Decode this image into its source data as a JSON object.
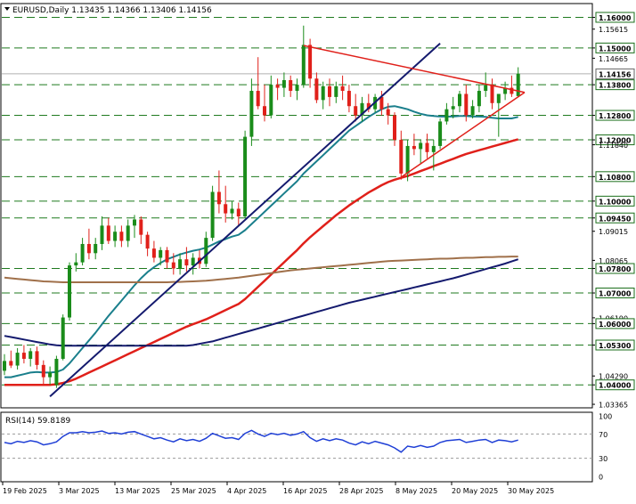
{
  "header": {
    "symbol": "EURUSD,Daily",
    "ohlc": "1.13435 1.14366 1.13406 1.14156"
  },
  "rsi_header": "RSI(14) 59.8189",
  "chart_data": {
    "type": "candlestick",
    "price_range": [
      1.0325,
      1.1645
    ],
    "price_ticks": [
      {
        "value": 1.16,
        "label": "1.16000",
        "boxed": true
      },
      {
        "value": 1.15615,
        "label": "1.15615",
        "boxed": false
      },
      {
        "value": 1.15,
        "label": "1.15000",
        "boxed": true
      },
      {
        "value": 1.14665,
        "label": "1.14665",
        "boxed": false
      },
      {
        "value": 1.138,
        "label": "1.13800",
        "boxed": true
      },
      {
        "value": 1.128,
        "label": "1.12800",
        "boxed": true
      },
      {
        "value": 1.12,
        "label": "1.12000",
        "boxed": true
      },
      {
        "value": 1.1184,
        "label": "1.11840",
        "boxed": false
      },
      {
        "value": 1.108,
        "label": "1.10800",
        "boxed": true
      },
      {
        "value": 1.1,
        "label": "1.10000",
        "boxed": true
      },
      {
        "value": 1.0945,
        "label": "1.09450",
        "boxed": true
      },
      {
        "value": 1.09015,
        "label": "1.09015",
        "boxed": false
      },
      {
        "value": 1.08065,
        "label": "1.08065",
        "boxed": false
      },
      {
        "value": 1.078,
        "label": "1.07800",
        "boxed": true
      },
      {
        "value": 1.07,
        "label": "1.07000",
        "boxed": true
      },
      {
        "value": 1.0619,
        "label": "1.06190",
        "boxed": false
      },
      {
        "value": 1.06,
        "label": "1.06000",
        "boxed": true
      },
      {
        "value": 1.053,
        "label": "1.05300",
        "boxed": true
      },
      {
        "value": 1.0429,
        "label": "1.04290",
        "boxed": false
      },
      {
        "value": 1.04,
        "label": "1.04000",
        "boxed": true
      },
      {
        "value": 1.03365,
        "label": "1.03365",
        "boxed": false
      }
    ],
    "level_lines": [
      1.16,
      1.15,
      1.138,
      1.128,
      1.12,
      1.108,
      1.1,
      1.0945,
      1.078,
      1.07,
      1.06,
      1.053,
      1.04
    ],
    "current_price": {
      "value": 1.14156,
      "label": "1.14156"
    },
    "x_labels": [
      "19 Feb 2025",
      "3 Mar 2025",
      "13 Mar 2025",
      "25 Mar 2025",
      "4 Apr 2025",
      "16 Apr 2025",
      "28 Apr 2025",
      "8 May 2025",
      "20 May 2025",
      "30 May 2025"
    ],
    "candles": [
      [
        1.0446,
        1.05,
        1.0432,
        1.0478
      ],
      [
        1.0478,
        1.0512,
        1.0455,
        1.0463
      ],
      [
        1.0463,
        1.052,
        1.045,
        1.0505
      ],
      [
        1.0505,
        1.053,
        1.047,
        1.0485
      ],
      [
        1.0485,
        1.052,
        1.046,
        1.051
      ],
      [
        1.051,
        1.0525,
        1.045,
        1.0465
      ],
      [
        1.0465,
        1.048,
        1.04,
        1.0425
      ],
      [
        1.0425,
        1.046,
        1.04,
        1.044
      ],
      [
        1.04,
        1.0495,
        1.039,
        1.0485
      ],
      [
        1.0485,
        1.063,
        1.048,
        1.062
      ],
      [
        1.062,
        1.08,
        1.061,
        1.079
      ],
      [
        1.079,
        1.083,
        1.077,
        1.08
      ],
      [
        1.08,
        1.088,
        1.079,
        1.086
      ],
      [
        1.086,
        1.091,
        1.081,
        1.083
      ],
      [
        1.083,
        1.088,
        1.081,
        1.086
      ],
      [
        1.086,
        1.095,
        1.084,
        1.092
      ],
      [
        1.092,
        1.0945,
        1.086,
        1.087
      ],
      [
        1.087,
        1.092,
        1.085,
        1.09
      ],
      [
        1.09,
        1.092,
        1.085,
        1.087
      ],
      [
        1.087,
        1.094,
        1.085,
        1.092
      ],
      [
        1.092,
        1.0955,
        1.088,
        1.094
      ],
      [
        1.094,
        1.095,
        1.086,
        1.089
      ],
      [
        1.089,
        1.09,
        1.082,
        1.0845
      ],
      [
        1.0845,
        1.087,
        1.08,
        1.0815
      ],
      [
        1.0815,
        1.085,
        1.079,
        1.084
      ],
      [
        1.084,
        1.085,
        1.078,
        1.08
      ],
      [
        1.08,
        1.083,
        1.076,
        1.078
      ],
      [
        1.078,
        1.083,
        1.076,
        1.081
      ],
      [
        1.081,
        1.085,
        1.077,
        1.079
      ],
      [
        1.079,
        1.083,
        1.076,
        1.0815
      ],
      [
        1.0815,
        1.084,
        1.078,
        1.0795
      ],
      [
        1.0795,
        1.09,
        1.0785,
        1.088
      ],
      [
        1.088,
        1.105,
        1.087,
        1.103
      ],
      [
        1.103,
        1.11,
        1.096,
        1.099
      ],
      [
        1.099,
        1.105,
        1.093,
        1.096
      ],
      [
        1.096,
        1.1,
        1.094,
        1.0975
      ],
      [
        1.0975,
        1.0995,
        1.092,
        1.095
      ],
      [
        1.095,
        1.123,
        1.0945,
        1.121
      ],
      [
        1.121,
        1.14,
        1.118,
        1.136
      ],
      [
        1.136,
        1.147,
        1.13,
        1.131
      ],
      [
        1.131,
        1.138,
        1.126,
        1.128
      ],
      [
        1.128,
        1.141,
        1.127,
        1.138
      ],
      [
        1.138,
        1.14,
        1.133,
        1.137
      ],
      [
        1.137,
        1.142,
        1.134,
        1.1395
      ],
      [
        1.1395,
        1.141,
        1.134,
        1.136
      ],
      [
        1.136,
        1.14,
        1.133,
        1.138
      ],
      [
        1.138,
        1.1573,
        1.137,
        1.151
      ],
      [
        1.151,
        1.153,
        1.137,
        1.14
      ],
      [
        1.14,
        1.142,
        1.132,
        1.133
      ],
      [
        1.133,
        1.139,
        1.13,
        1.1375
      ],
      [
        1.1375,
        1.14,
        1.131,
        1.134
      ],
      [
        1.134,
        1.139,
        1.132,
        1.1375
      ],
      [
        1.1375,
        1.141,
        1.133,
        1.136
      ],
      [
        1.136,
        1.138,
        1.129,
        1.131
      ],
      [
        1.131,
        1.135,
        1.126,
        1.128
      ],
      [
        1.128,
        1.134,
        1.126,
        1.132
      ],
      [
        1.132,
        1.135,
        1.129,
        1.13
      ],
      [
        1.13,
        1.135,
        1.129,
        1.134
      ],
      [
        1.134,
        1.136,
        1.128,
        1.13
      ],
      [
        1.13,
        1.132,
        1.125,
        1.128
      ],
      [
        1.128,
        1.129,
        1.118,
        1.12
      ],
      [
        1.12,
        1.123,
        1.107,
        1.109
      ],
      [
        1.109,
        1.12,
        1.1065,
        1.118
      ],
      [
        1.118,
        1.122,
        1.115,
        1.117
      ],
      [
        1.117,
        1.12,
        1.112,
        1.119
      ],
      [
        1.119,
        1.122,
        1.114,
        1.116
      ],
      [
        1.116,
        1.12,
        1.11,
        1.118
      ],
      [
        1.118,
        1.127,
        1.117,
        1.126
      ],
      [
        1.126,
        1.132,
        1.125,
        1.13
      ],
      [
        1.13,
        1.134,
        1.127,
        1.131
      ],
      [
        1.131,
        1.136,
        1.129,
        1.135
      ],
      [
        1.135,
        1.138,
        1.126,
        1.128
      ],
      [
        1.128,
        1.133,
        1.127,
        1.131
      ],
      [
        1.131,
        1.138,
        1.129,
        1.136
      ],
      [
        1.136,
        1.142,
        1.134,
        1.138
      ],
      [
        1.138,
        1.14,
        1.13,
        1.132
      ],
      [
        1.132,
        1.135,
        1.121,
        1.135
      ],
      [
        1.135,
        1.139,
        1.133,
        1.137
      ],
      [
        1.137,
        1.141,
        1.134,
        1.135
      ],
      [
        1.1343,
        1.1437,
        1.1341,
        1.1416
      ]
    ],
    "rsi": {
      "range": [
        0,
        100
      ],
      "ticks": [
        100,
        70,
        30,
        0
      ],
      "levels": [
        70,
        30
      ],
      "values": [
        56,
        54,
        58,
        56,
        59,
        57,
        52,
        54,
        57,
        66,
        72,
        72,
        74,
        72,
        73,
        75,
        71,
        72,
        70,
        73,
        74,
        70,
        66,
        62,
        64,
        60,
        57,
        62,
        59,
        61,
        58,
        63,
        71,
        67,
        63,
        64,
        61,
        71,
        76,
        70,
        66,
        71,
        69,
        71,
        68,
        70,
        74,
        64,
        58,
        62,
        59,
        62,
        60,
        55,
        52,
        57,
        54,
        58,
        55,
        52,
        47,
        40,
        50,
        48,
        51,
        48,
        50,
        56,
        59,
        60,
        61,
        56,
        58,
        60,
        61,
        56,
        60,
        59,
        57,
        60
      ]
    },
    "overlays": [
      {
        "kind": "ma",
        "color": "#1a7f8c",
        "width": 2,
        "start": 0,
        "values": [
          1.0425,
          1.0425,
          1.043,
          1.0435,
          1.044,
          1.0442,
          1.044,
          1.044,
          1.0442,
          1.045,
          1.047,
          1.0495,
          1.052,
          1.0545,
          1.057,
          1.0598,
          1.0625,
          1.065,
          1.0675,
          1.07,
          1.0725,
          1.0748,
          1.0768,
          1.0784,
          1.0798,
          1.081,
          1.0818,
          1.0826,
          1.0832,
          1.0838,
          1.0842,
          1.0848,
          1.0858,
          1.0868,
          1.0876,
          1.0884,
          1.089,
          1.0905,
          1.0925,
          1.0945,
          1.0965,
          1.0985,
          1.1005,
          1.1025,
          1.1045,
          1.1065,
          1.109,
          1.111,
          1.113,
          1.115,
          1.117,
          1.119,
          1.121,
          1.123,
          1.1245,
          1.126,
          1.1275,
          1.1288,
          1.13,
          1.1308,
          1.131,
          1.1305,
          1.13,
          1.1292,
          1.1285,
          1.128,
          1.1278,
          1.1276,
          1.1276,
          1.1276,
          1.1278,
          1.1278,
          1.1276,
          1.1276,
          1.1275,
          1.1272,
          1.127,
          1.127,
          1.127,
          1.1275
        ]
      },
      {
        "kind": "ma",
        "color": "#e0201a",
        "width": 2.5,
        "start": 0,
        "values": [
          1.04,
          1.04,
          1.04,
          1.04,
          1.04,
          1.04,
          1.04,
          1.04,
          1.0402,
          1.0406,
          1.0412,
          1.042,
          1.043,
          1.044,
          1.045,
          1.046,
          1.047,
          1.048,
          1.049,
          1.05,
          1.051,
          1.052,
          1.053,
          1.054,
          1.055,
          1.056,
          1.057,
          1.058,
          1.059,
          1.0598,
          1.0606,
          1.0614,
          1.0624,
          1.0634,
          1.0644,
          1.0654,
          1.0664,
          1.068,
          1.07,
          1.072,
          1.074,
          1.076,
          1.078,
          1.08,
          1.082,
          1.084,
          1.0862,
          1.0882,
          1.09,
          1.0918,
          1.0936,
          1.0954,
          1.097,
          1.0986,
          1.1,
          1.1014,
          1.1028,
          1.104,
          1.1052,
          1.1062,
          1.107,
          1.1076,
          1.1082,
          1.109,
          1.1098,
          1.1106,
          1.1114,
          1.1122,
          1.113,
          1.1138,
          1.1146,
          1.1154,
          1.116,
          1.1166,
          1.1172,
          1.1178,
          1.1184,
          1.119,
          1.1196,
          1.1202
        ]
      },
      {
        "kind": "ma",
        "color": "#141a6e",
        "width": 2,
        "start": 0,
        "values": [
          1.056,
          1.0556,
          1.0552,
          1.0548,
          1.0544,
          1.054,
          1.0536,
          1.0532,
          1.0529,
          1.0528,
          1.0528,
          1.0528,
          1.0528,
          1.0528,
          1.0528,
          1.0528,
          1.0528,
          1.0528,
          1.0528,
          1.0528,
          1.0528,
          1.0528,
          1.0528,
          1.0528,
          1.0528,
          1.0528,
          1.0528,
          1.0528,
          1.0528,
          1.053,
          1.0534,
          1.0538,
          1.0542,
          1.0548,
          1.0554,
          1.056,
          1.0566,
          1.0572,
          1.0578,
          1.0584,
          1.059,
          1.0596,
          1.0602,
          1.0608,
          1.0614,
          1.062,
          1.0626,
          1.0632,
          1.0638,
          1.0644,
          1.065,
          1.0656,
          1.0662,
          1.0668,
          1.0673,
          1.0678,
          1.0683,
          1.0688,
          1.0693,
          1.0698,
          1.0703,
          1.0708,
          1.0713,
          1.0718,
          1.0723,
          1.0728,
          1.0733,
          1.0738,
          1.0743,
          1.0748,
          1.0754,
          1.076,
          1.0766,
          1.0772,
          1.0778,
          1.0784,
          1.079,
          1.0796,
          1.0803,
          1.081
        ]
      },
      {
        "kind": "ma",
        "color": "#a0704a",
        "width": 2,
        "start": 0,
        "values": [
          1.075,
          1.0748,
          1.0746,
          1.0744,
          1.0742,
          1.074,
          1.0738,
          1.0737,
          1.0736,
          1.0735,
          1.0735,
          1.0735,
          1.0735,
          1.0735,
          1.0735,
          1.0735,
          1.0735,
          1.0735,
          1.0735,
          1.0735,
          1.0735,
          1.0735,
          1.0735,
          1.0735,
          1.0735,
          1.0735,
          1.0736,
          1.0736,
          1.0737,
          1.0738,
          1.0739,
          1.074,
          1.0742,
          1.0744,
          1.0746,
          1.0748,
          1.075,
          1.0753,
          1.0756,
          1.0759,
          1.0762,
          1.0765,
          1.0768,
          1.0771,
          1.0774,
          1.0776,
          1.0778,
          1.078,
          1.0782,
          1.0784,
          1.0786,
          1.0788,
          1.079,
          1.0792,
          1.0794,
          1.0796,
          1.0798,
          1.08,
          1.0802,
          1.0804,
          1.0805,
          1.0806,
          1.0807,
          1.0808,
          1.0809,
          1.081,
          1.0811,
          1.0812,
          1.0812,
          1.0813,
          1.0814,
          1.0815,
          1.0815,
          1.0816,
          1.0817,
          1.0817,
          1.0818,
          1.0818,
          1.0819,
          1.0819
        ]
      }
    ],
    "trendlines": [
      {
        "name": "support-line",
        "color": "#141a6e",
        "width": 2,
        "from": [
          7,
          1.0362
        ],
        "to": [
          67,
          1.1515
        ]
      },
      {
        "name": "upper-triangle-line",
        "color": "#e0201a",
        "width": 1.5,
        "from": [
          46,
          1.1508
        ],
        "to": [
          80,
          1.1355
        ]
      },
      {
        "name": "lower-triangle-line",
        "color": "#e0201a",
        "width": 1.5,
        "from": [
          61,
          1.1078
        ],
        "to": [
          80,
          1.1355
        ]
      }
    ],
    "colors": {
      "up": "#1a8c1a",
      "down": "#e0201a",
      "level_line": "#1f7a1f",
      "rsi_line": "#1f3fd6",
      "grid_box": "#000000"
    }
  }
}
